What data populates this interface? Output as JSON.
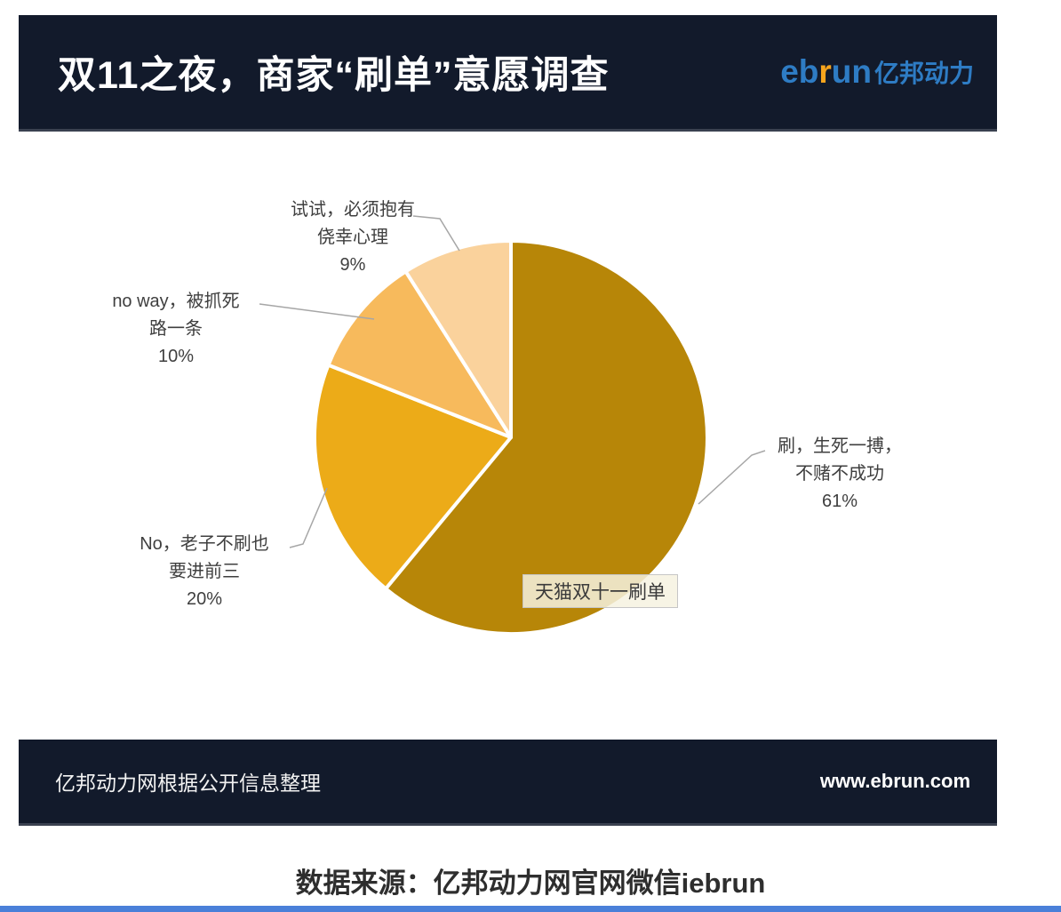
{
  "header": {
    "title": "双11之夜，商家“刷单”意愿调查",
    "logo": {
      "en_prefix": "eb",
      "en_accent": "r",
      "en_suffix": "un",
      "cn": "亿邦动力"
    }
  },
  "chart_data": {
    "type": "pie",
    "title": "双11之夜，商家“刷单”意愿调查",
    "series_name": "天猫双十一刷单",
    "tooltip": "天猫双十一刷单",
    "direction": "clockwise",
    "start_angle_deg": 0,
    "slices": [
      {
        "label": "刷，生死一搏，不赌不成功",
        "line1": "刷，生死一搏，",
        "line2": "不赌不成功",
        "pct": "61%",
        "value": 61,
        "color": "#B78608"
      },
      {
        "label": "No，老子不刷也要进前三",
        "line1": "No，老子不刷也",
        "line2": "要进前三",
        "pct": "20%",
        "value": 20,
        "color": "#ECAB18"
      },
      {
        "label": "no way，被抓死路一条",
        "line1": "no way，被抓死",
        "line2": "路一条",
        "pct": "10%",
        "value": 10,
        "color": "#F7BA5C"
      },
      {
        "label": "试试，必须抱有侥幸心理",
        "line1": "试试，必须抱有",
        "line2": "侥幸心理",
        "pct": "9%",
        "value": 9,
        "color": "#FAD29C"
      }
    ]
  },
  "footer": {
    "left": "亿邦动力网根据公开信息整理",
    "right": "www.ebrun.com"
  },
  "source_note": "数据来源：亿邦动力网官网微信iebrun",
  "colors": {
    "header_bg": "#121A2B",
    "logo_blue": "#2E7CC4",
    "logo_orange": "#F7A51D",
    "bottom_bar_blue": "#4A80D9",
    "label_text": "#3F3F3F",
    "leader_line": "#A6A6A6"
  }
}
